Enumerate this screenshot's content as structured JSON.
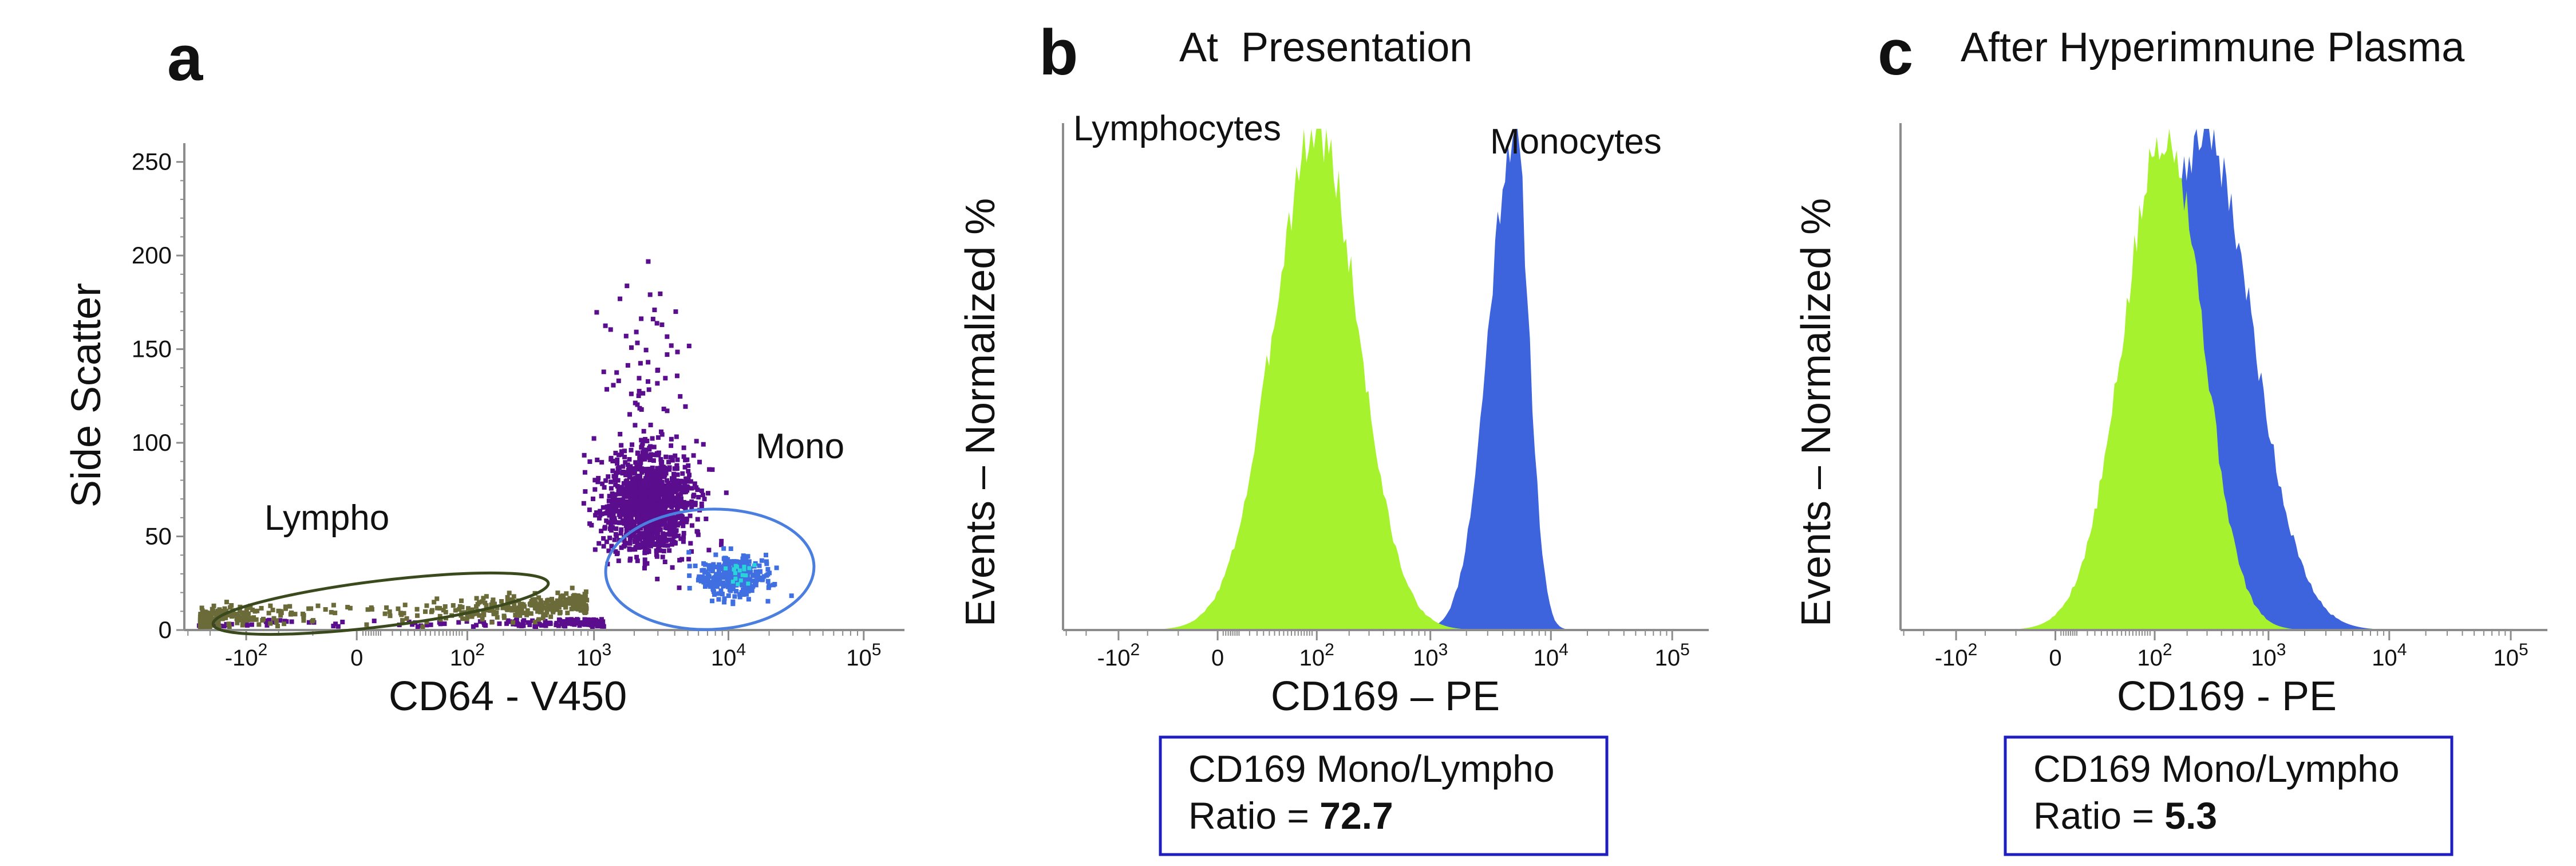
{
  "chart_data": [
    {
      "panel": "a",
      "type": "scatter",
      "title": "",
      "xlabel": "CD64 - V450",
      "ylabel": "Side Scatter",
      "x_scale": "biexponential",
      "x_ticks": [
        {
          "base": "-10",
          "exp": "2",
          "value": -100
        },
        {
          "base": "0",
          "exp": "",
          "value": 0
        },
        {
          "base": "10",
          "exp": "2",
          "value": 100
        },
        {
          "base": "10",
          "exp": "3",
          "value": 1000
        },
        {
          "base": "10",
          "exp": "4",
          "value": 10000
        },
        {
          "base": "10",
          "exp": "5",
          "value": 100000
        }
      ],
      "y_ticks": [
        "0",
        "50",
        "100",
        "150",
        "200",
        "250"
      ],
      "ylim": [
        0,
        260
      ],
      "populations": [
        {
          "gate": "Lympho",
          "color": "#6b6b3a",
          "x_range": [
            -300,
            1000
          ],
          "y_center": 11
        },
        {
          "gate": "",
          "color": "#5a0d8c",
          "x_center": 2500,
          "y_center": 68
        },
        {
          "gate": "Mono",
          "color": "#3f6fe0",
          "x_range": [
            3000,
            40000
          ],
          "y_center": 30
        }
      ],
      "gate_colors": {
        "Lympho": "#3a4a1c",
        "Mono": "#4a7fe0"
      }
    },
    {
      "panel": "b",
      "type": "area",
      "title": "At  Presentation",
      "xlabel": "CD169 – PE",
      "ylabel": "Events – Normalized %",
      "x_scale": "biexponential",
      "x_ticks": [
        {
          "base": "-10",
          "exp": "2",
          "value": -100
        },
        {
          "base": "0",
          "exp": "",
          "value": 0
        },
        {
          "base": "10",
          "exp": "2",
          "value": 100
        },
        {
          "base": "10",
          "exp": "3",
          "value": 1000
        },
        {
          "base": "10",
          "exp": "4",
          "value": 10000
        },
        {
          "base": "10",
          "exp": "5",
          "value": 100000
        }
      ],
      "series": [
        {
          "name": "Lymphocytes",
          "color": "#a6f22e",
          "peak_x": 100,
          "x_range": [
            -150,
            600
          ]
        },
        {
          "name": "Monocytes",
          "color": "#3d63dd",
          "peak_x": 5000,
          "x_range": [
            400,
            15000
          ]
        }
      ],
      "box": {
        "line1": "CD169 Mono/Lympho",
        "prefix": "Ratio = ",
        "value": "72.7"
      }
    },
    {
      "panel": "c",
      "type": "area",
      "title": "After Hyperimmune Plasma",
      "xlabel": "CD169 - PE",
      "ylabel": "Events – Normalized %",
      "x_scale": "biexponential",
      "x_ticks": [
        {
          "base": "-10",
          "exp": "2",
          "value": -100
        },
        {
          "base": "0",
          "exp": "",
          "value": 0
        },
        {
          "base": "10",
          "exp": "2",
          "value": 100
        },
        {
          "base": "10",
          "exp": "3",
          "value": 1000
        },
        {
          "base": "10",
          "exp": "4",
          "value": 10000
        },
        {
          "base": "10",
          "exp": "5",
          "value": 100000
        }
      ],
      "series": [
        {
          "name": "",
          "color": "#a6f22e",
          "peak_x": 130,
          "x_range": [
            -150,
            800
          ]
        },
        {
          "name": "",
          "color": "#3d63dd",
          "peak_x": 280,
          "x_range": [
            -50,
            8000
          ]
        }
      ],
      "box": {
        "line1": "CD169 Mono/Lympho",
        "prefix": "Ratio = ",
        "value": "5.3"
      }
    }
  ],
  "panels": {
    "a": {
      "letter": "a",
      "lympho_label": "Lympho",
      "mono_label": "Mono"
    },
    "b": {
      "letter": "b"
    },
    "c": {
      "letter": "c"
    }
  },
  "colors": {
    "axis": "#8c8c8c",
    "box_border": "#1f1fbf",
    "lymph_fill": "#a6f22e",
    "mono_fill": "#3d63dd"
  }
}
